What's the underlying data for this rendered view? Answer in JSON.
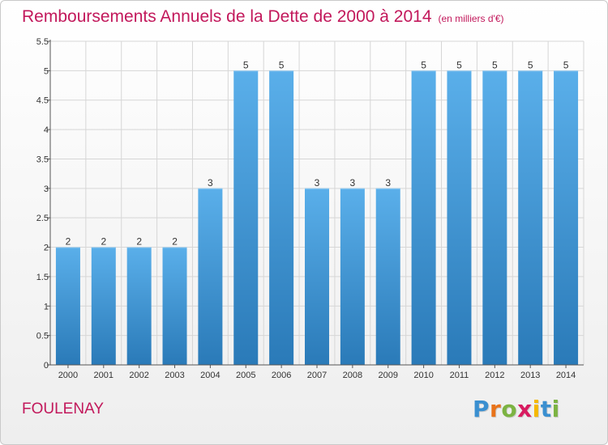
{
  "title": "Remboursements Annuels de la Dette de 2000 à 2014",
  "subtitle": "(en milliers d'€)",
  "commune": "FOULENAY",
  "logo": {
    "text": "Proxiti",
    "letters": [
      {
        "ch": "P",
        "color": "#3a8fd0"
      },
      {
        "ch": "r",
        "color": "#e8731a"
      },
      {
        "ch": "o",
        "color": "#7cb342"
      },
      {
        "ch": "x",
        "color": "#d81b60"
      },
      {
        "ch": "i",
        "color": "#f5b800"
      },
      {
        "ch": "t",
        "color": "#3a8fd0"
      },
      {
        "ch": "i",
        "color": "#7cb342"
      }
    ]
  },
  "colors": {
    "bar_top": "#5aafea",
    "bar_bottom": "#2a7ab8",
    "accent": "#c2185b",
    "grid": "#d6d6d6",
    "axis_text": "#333333"
  },
  "chart_data": {
    "type": "bar",
    "title": "Remboursements Annuels de la Dette de 2000 à 2014",
    "subtitle": "(en milliers d'€)",
    "xlabel": "",
    "ylabel": "",
    "categories": [
      "2000",
      "2001",
      "2002",
      "2003",
      "2004",
      "2005",
      "2006",
      "2007",
      "2008",
      "2009",
      "2010",
      "2011",
      "2012",
      "2013",
      "2014"
    ],
    "values": [
      2,
      2,
      2,
      2,
      3,
      5,
      5,
      3,
      3,
      3,
      5,
      5,
      5,
      5,
      5
    ],
    "value_labels": [
      "2",
      "2",
      "2",
      "2",
      "3",
      "5",
      "5",
      "3",
      "3",
      "3",
      "5",
      "5",
      "5",
      "5",
      "5"
    ],
    "ylim": [
      0,
      5.5
    ],
    "yticks": [
      0,
      0.5,
      1,
      1.5,
      2,
      2.5,
      3,
      3.5,
      4,
      4.5,
      5,
      5.5
    ],
    "ytick_labels": [
      "0",
      "0.5",
      "1",
      "1.5",
      "2",
      "2.5",
      "3",
      "3.5",
      "4",
      "4.5",
      "5",
      "5.5"
    ],
    "grid": true
  }
}
